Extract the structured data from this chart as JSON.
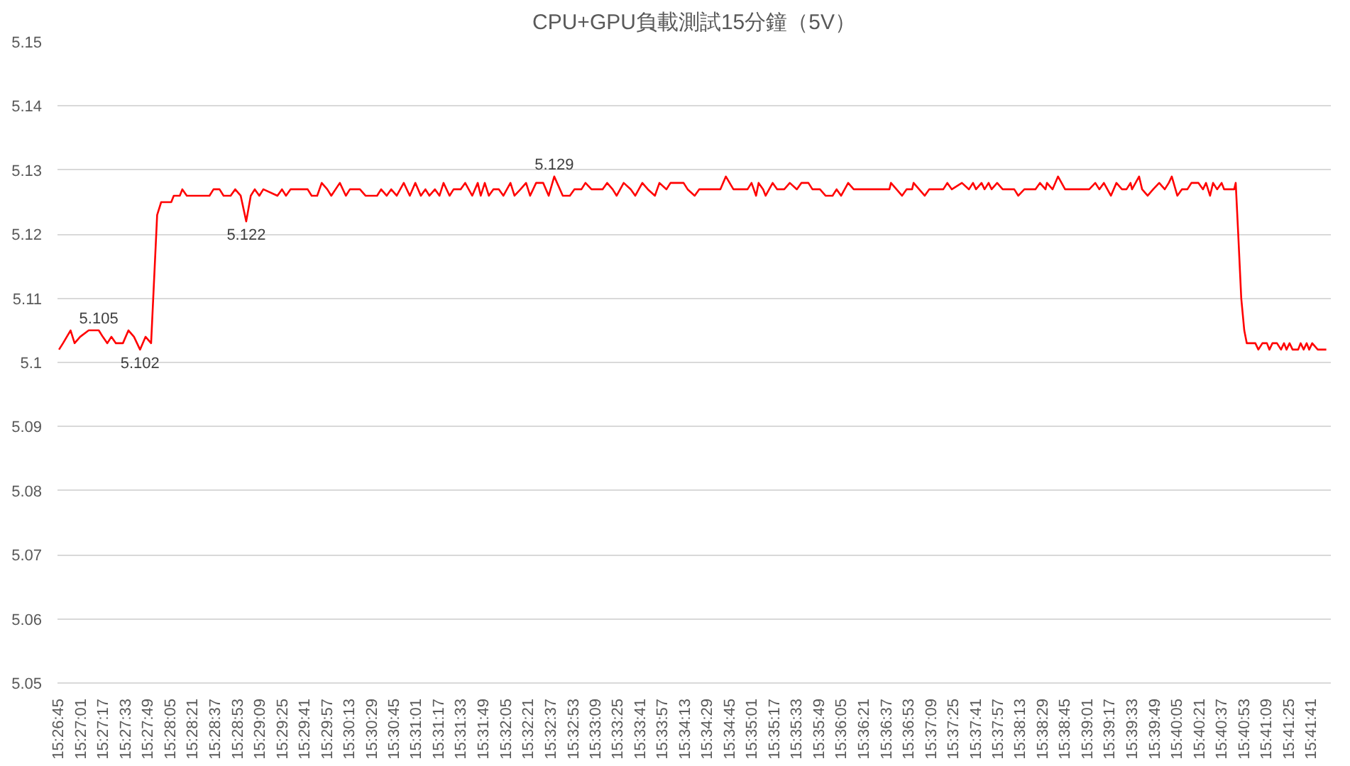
{
  "chart_data": {
    "type": "line",
    "title": "CPU+GPU負載測試15分鐘（5V）",
    "xlim": [
      15.4455,
      15.6985
    ],
    "ylim": [
      5.05,
      5.15
    ],
    "yticks": [
      5.05,
      5.06,
      5.07,
      5.08,
      5.09,
      5.1,
      5.11,
      5.12,
      5.13,
      5.14,
      5.15
    ],
    "xticks": [
      {
        "value": 15.4458,
        "label": "15:26:45"
      },
      {
        "value": 15.4503,
        "label": "15:27:01"
      },
      {
        "value": 15.4547,
        "label": "15:27:17"
      },
      {
        "value": 15.4592,
        "label": "15:27:33"
      },
      {
        "value": 15.4636,
        "label": "15:27:49"
      },
      {
        "value": 15.4681,
        "label": "15:28:05"
      },
      {
        "value": 15.4725,
        "label": "15:28:21"
      },
      {
        "value": 15.4769,
        "label": "15:28:37"
      },
      {
        "value": 15.4814,
        "label": "15:28:53"
      },
      {
        "value": 15.4858,
        "label": "15:29:09"
      },
      {
        "value": 15.4903,
        "label": "15:29:25"
      },
      {
        "value": 15.4947,
        "label": "15:29:41"
      },
      {
        "value": 15.4992,
        "label": "15:29:57"
      },
      {
        "value": 15.5036,
        "label": "15:30:13"
      },
      {
        "value": 15.5081,
        "label": "15:30:29"
      },
      {
        "value": 15.5125,
        "label": "15:30:45"
      },
      {
        "value": 15.5169,
        "label": "15:31:01"
      },
      {
        "value": 15.5214,
        "label": "15:31:17"
      },
      {
        "value": 15.5258,
        "label": "15:31:33"
      },
      {
        "value": 15.5303,
        "label": "15:31:49"
      },
      {
        "value": 15.5347,
        "label": "15:32:05"
      },
      {
        "value": 15.5392,
        "label": "15:32:21"
      },
      {
        "value": 15.5436,
        "label": "15:32:37"
      },
      {
        "value": 15.5481,
        "label": "15:32:53"
      },
      {
        "value": 15.5525,
        "label": "15:33:09"
      },
      {
        "value": 15.5569,
        "label": "15:33:25"
      },
      {
        "value": 15.5614,
        "label": "15:33:41"
      },
      {
        "value": 15.5658,
        "label": "15:33:57"
      },
      {
        "value": 15.5703,
        "label": "15:34:13"
      },
      {
        "value": 15.5747,
        "label": "15:34:29"
      },
      {
        "value": 15.5792,
        "label": "15:34:45"
      },
      {
        "value": 15.5836,
        "label": "15:35:01"
      },
      {
        "value": 15.5881,
        "label": "15:35:17"
      },
      {
        "value": 15.5925,
        "label": "15:35:33"
      },
      {
        "value": 15.5969,
        "label": "15:35:49"
      },
      {
        "value": 15.6014,
        "label": "15:36:05"
      },
      {
        "value": 15.6058,
        "label": "15:36:21"
      },
      {
        "value": 15.6103,
        "label": "15:36:37"
      },
      {
        "value": 15.6147,
        "label": "15:36:53"
      },
      {
        "value": 15.6192,
        "label": "15:37:09"
      },
      {
        "value": 15.6236,
        "label": "15:37:25"
      },
      {
        "value": 15.6281,
        "label": "15:37:41"
      },
      {
        "value": 15.6325,
        "label": "15:37:57"
      },
      {
        "value": 15.6369,
        "label": "15:38:13"
      },
      {
        "value": 15.6414,
        "label": "15:38:29"
      },
      {
        "value": 15.6458,
        "label": "15:38:45"
      },
      {
        "value": 15.6503,
        "label": "15:39:01"
      },
      {
        "value": 15.6547,
        "label": "15:39:17"
      },
      {
        "value": 15.6592,
        "label": "15:39:33"
      },
      {
        "value": 15.6636,
        "label": "15:39:49"
      },
      {
        "value": 15.6681,
        "label": "15:40:05"
      },
      {
        "value": 15.6725,
        "label": "15:40:21"
      },
      {
        "value": 15.6769,
        "label": "15:40:37"
      },
      {
        "value": 15.6814,
        "label": "15:40:53"
      },
      {
        "value": 15.6858,
        "label": "15:41:09"
      },
      {
        "value": 15.6903,
        "label": "15:41:25"
      },
      {
        "value": 15.6947,
        "label": "15:41:41"
      }
    ],
    "grid": "y",
    "marker": "none",
    "line_style": "solid",
    "annotations": [
      {
        "text": "5.105",
        "x": 15.4537,
        "y": 5.105
      },
      {
        "text": "5.102",
        "x": 15.4619,
        "y": 5.102
      },
      {
        "text": "5.122",
        "x": 15.483,
        "y": 5.122
      },
      {
        "text": "5.129",
        "x": 15.5442,
        "y": 5.129
      }
    ],
    "series": [
      {
        "color": "#ff0000",
        "x": [
          15.4458,
          15.4466,
          15.4481,
          15.4489,
          15.45,
          15.4517,
          15.4537,
          15.4545,
          15.4554,
          15.4562,
          15.4571,
          15.4585,
          15.4596,
          15.4607,
          15.4619,
          15.463,
          15.4641,
          15.4653,
          15.4661,
          15.4681,
          15.4686,
          15.4698,
          15.4703,
          15.4712,
          15.4757,
          15.4765,
          15.4777,
          15.4785,
          15.4799,
          15.4808,
          15.4819,
          15.483,
          15.4839,
          15.4847,
          15.4856,
          15.4864,
          15.4892,
          15.4901,
          15.4909,
          15.4918,
          15.4952,
          15.496,
          15.4971,
          15.498,
          15.4991,
          15.4999,
          15.5016,
          15.5028,
          15.5036,
          15.5056,
          15.5067,
          15.509,
          15.5098,
          15.5109,
          15.5118,
          15.5129,
          15.5143,
          15.5155,
          15.5166,
          15.5177,
          15.5186,
          15.5194,
          15.5205,
          15.5214,
          15.5222,
          15.5234,
          15.5242,
          15.5256,
          15.5265,
          15.5279,
          15.529,
          15.5296,
          15.5304,
          15.5312,
          15.5321,
          15.5332,
          15.5341,
          15.5355,
          15.5363,
          15.5375,
          15.5386,
          15.5394,
          15.5406,
          15.542,
          15.5431,
          15.5442,
          15.5459,
          15.5473,
          15.5482,
          15.5496,
          15.5504,
          15.5516,
          15.5538,
          15.5547,
          15.5558,
          15.5566,
          15.558,
          15.5594,
          15.5603,
          15.5617,
          15.5628,
          15.5642,
          15.5651,
          15.5665,
          15.5673,
          15.5699,
          15.5707,
          15.5721,
          15.573,
          15.5772,
          15.5783,
          15.5798,
          15.5826,
          15.5834,
          15.5843,
          15.5848,
          15.5857,
          15.5862,
          15.5876,
          15.5885,
          15.5899,
          15.591,
          15.5924,
          15.5933,
          15.5947,
          15.5955,
          15.597,
          15.5981,
          15.5995,
          15.6003,
          15.6012,
          15.6026,
          15.6037,
          15.6108,
          15.6111,
          15.6122,
          15.6133,
          15.6142,
          15.6153,
          15.6156,
          15.6167,
          15.6178,
          15.6187,
          15.6215,
          15.6223,
          15.6232,
          15.6252,
          15.6266,
          15.6274,
          15.628,
          15.6291,
          15.6297,
          15.6305,
          15.6311,
          15.6322,
          15.6333,
          15.6356,
          15.6364,
          15.6376,
          15.6398,
          15.6407,
          15.6418,
          15.6421,
          15.6432,
          15.6443,
          15.6457,
          15.6505,
          15.6517,
          15.6525,
          15.6534,
          15.6548,
          15.6559,
          15.657,
          15.6579,
          15.6587,
          15.659,
          15.6604,
          15.661,
          15.6621,
          15.6632,
          15.6644,
          15.6655,
          15.6663,
          15.6669,
          15.668,
          15.6689,
          15.67,
          15.6708,
          15.6722,
          15.6731,
          15.6737,
          15.6745,
          15.6751,
          15.6759,
          15.6768,
          15.6773,
          15.6793,
          15.6796,
          15.6801,
          15.6807,
          15.6813,
          15.6818,
          15.6835,
          15.6841,
          15.6849,
          15.6858,
          15.6863,
          15.6869,
          15.6878,
          15.6886,
          15.6892,
          15.6897,
          15.6903,
          15.6909,
          15.692,
          15.6925,
          15.6931,
          15.6937,
          15.6942,
          15.6948,
          15.6959,
          15.6976
        ],
        "values": [
          5.102,
          5.103,
          5.105,
          5.103,
          5.104,
          5.105,
          5.105,
          5.104,
          5.103,
          5.104,
          5.103,
          5.103,
          5.105,
          5.104,
          5.102,
          5.104,
          5.103,
          5.123,
          5.125,
          5.125,
          5.126,
          5.126,
          5.127,
          5.126,
          5.126,
          5.127,
          5.127,
          5.126,
          5.126,
          5.127,
          5.126,
          5.122,
          5.126,
          5.127,
          5.126,
          5.127,
          5.126,
          5.127,
          5.126,
          5.127,
          5.127,
          5.126,
          5.126,
          5.128,
          5.127,
          5.126,
          5.128,
          5.126,
          5.127,
          5.127,
          5.126,
          5.126,
          5.127,
          5.126,
          5.127,
          5.126,
          5.128,
          5.126,
          5.128,
          5.126,
          5.127,
          5.126,
          5.127,
          5.126,
          5.128,
          5.126,
          5.127,
          5.127,
          5.128,
          5.126,
          5.128,
          5.126,
          5.128,
          5.126,
          5.127,
          5.127,
          5.126,
          5.128,
          5.126,
          5.127,
          5.128,
          5.126,
          5.128,
          5.128,
          5.126,
          5.129,
          5.126,
          5.126,
          5.127,
          5.127,
          5.128,
          5.127,
          5.127,
          5.128,
          5.127,
          5.126,
          5.128,
          5.127,
          5.126,
          5.128,
          5.127,
          5.126,
          5.128,
          5.127,
          5.128,
          5.128,
          5.127,
          5.126,
          5.127,
          5.127,
          5.129,
          5.127,
          5.127,
          5.128,
          5.126,
          5.128,
          5.127,
          5.126,
          5.128,
          5.127,
          5.127,
          5.128,
          5.127,
          5.128,
          5.128,
          5.127,
          5.127,
          5.126,
          5.126,
          5.127,
          5.126,
          5.128,
          5.127,
          5.127,
          5.128,
          5.127,
          5.126,
          5.127,
          5.127,
          5.128,
          5.127,
          5.126,
          5.127,
          5.127,
          5.128,
          5.127,
          5.128,
          5.127,
          5.128,
          5.127,
          5.128,
          5.127,
          5.128,
          5.127,
          5.128,
          5.127,
          5.127,
          5.126,
          5.127,
          5.127,
          5.128,
          5.127,
          5.128,
          5.127,
          5.129,
          5.127,
          5.127,
          5.128,
          5.127,
          5.128,
          5.126,
          5.128,
          5.127,
          5.127,
          5.128,
          5.127,
          5.129,
          5.127,
          5.126,
          5.127,
          5.128,
          5.127,
          5.128,
          5.129,
          5.126,
          5.127,
          5.127,
          5.128,
          5.128,
          5.127,
          5.128,
          5.126,
          5.128,
          5.127,
          5.128,
          5.127,
          5.127,
          5.128,
          5.12,
          5.11,
          5.105,
          5.103,
          5.103,
          5.102,
          5.103,
          5.103,
          5.102,
          5.103,
          5.103,
          5.102,
          5.103,
          5.102,
          5.103,
          5.102,
          5.102,
          5.103,
          5.102,
          5.103,
          5.102,
          5.103,
          5.102,
          5.102
        ]
      }
    ]
  }
}
